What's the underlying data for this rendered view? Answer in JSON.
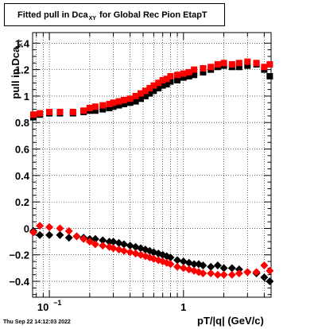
{
  "title": {
    "prefix": "Fitted pull in Dca",
    "subscript": "XY",
    "suffix": "for Global Rec Pion EtapT"
  },
  "timestamp": "Thu Sep 22 14:12:03 2022",
  "chart_data": {
    "type": "scatter",
    "xlabel": "pT/|q| (GeV/c)",
    "ylabel_main": "pull in Dca",
    "ylabel_sub": "XY",
    "xscale": "log",
    "xlim": [
      0.075,
      4.5
    ],
    "ylim": [
      -0.52,
      1.48
    ],
    "grid": true,
    "xticks": [
      {
        "value": 0.1,
        "base": "10",
        "exp": "−1"
      },
      {
        "value": 1,
        "label": "1"
      }
    ],
    "yticks": [
      {
        "value": -0.4,
        "label": "−0.4"
      },
      {
        "value": -0.2,
        "label": "−0.2"
      },
      {
        "value": 0,
        "label": "0"
      },
      {
        "value": 0.2,
        "label": "0.2"
      },
      {
        "value": 0.4,
        "label": "0.4"
      },
      {
        "value": 0.6,
        "label": "0.6"
      },
      {
        "value": 0.8,
        "label": "0.8"
      },
      {
        "value": 1,
        "label": "1"
      },
      {
        "value": 1.2,
        "label": "1.2"
      },
      {
        "value": 1.4,
        "label": "1.4"
      }
    ],
    "series": [
      {
        "color": "#000000",
        "marker": "square",
        "x": [
          0.076,
          0.085,
          0.1,
          0.12,
          0.15,
          0.18,
          0.2,
          0.22,
          0.25,
          0.28,
          0.3,
          0.33,
          0.36,
          0.4,
          0.44,
          0.48,
          0.52,
          0.56,
          0.6,
          0.65,
          0.7,
          0.75,
          0.8,
          0.9,
          1.0,
          1.1,
          1.2,
          1.4,
          1.6,
          1.8,
          2.0,
          2.3,
          2.6,
          3.0,
          3.5,
          4.0,
          4.4
        ],
        "y": [
          0.84,
          0.86,
          0.87,
          0.87,
          0.87,
          0.88,
          0.89,
          0.89,
          0.9,
          0.91,
          0.92,
          0.93,
          0.94,
          0.95,
          0.96,
          0.98,
          1.0,
          1.02,
          1.04,
          1.06,
          1.08,
          1.09,
          1.11,
          1.12,
          1.14,
          1.15,
          1.16,
          1.18,
          1.2,
          1.22,
          1.23,
          1.22,
          1.22,
          1.23,
          1.24,
          1.2,
          1.15
        ]
      },
      {
        "color": "#ff0000",
        "marker": "square",
        "x": [
          0.076,
          0.085,
          0.1,
          0.12,
          0.15,
          0.18,
          0.2,
          0.22,
          0.25,
          0.28,
          0.3,
          0.33,
          0.36,
          0.4,
          0.44,
          0.48,
          0.52,
          0.56,
          0.6,
          0.65,
          0.7,
          0.75,
          0.8,
          0.9,
          1.0,
          1.1,
          1.2,
          1.4,
          1.6,
          1.8,
          2.0,
          2.3,
          2.6,
          3.0,
          3.5,
          4.0,
          4.4
        ],
        "y": [
          0.86,
          0.87,
          0.88,
          0.88,
          0.88,
          0.89,
          0.91,
          0.92,
          0.93,
          0.94,
          0.95,
          0.96,
          0.97,
          0.98,
          1.0,
          1.02,
          1.04,
          1.06,
          1.08,
          1.1,
          1.12,
          1.13,
          1.15,
          1.16,
          1.17,
          1.18,
          1.2,
          1.21,
          1.22,
          1.24,
          1.25,
          1.24,
          1.25,
          1.26,
          1.25,
          1.22,
          1.24
        ]
      },
      {
        "color": "#000000",
        "marker": "diamond",
        "x": [
          0.076,
          0.085,
          0.1,
          0.12,
          0.14,
          0.16,
          0.18,
          0.2,
          0.22,
          0.25,
          0.28,
          0.3,
          0.33,
          0.36,
          0.4,
          0.44,
          0.48,
          0.52,
          0.56,
          0.6,
          0.65,
          0.7,
          0.75,
          0.8,
          0.9,
          1.0,
          1.1,
          1.2,
          1.3,
          1.4,
          1.6,
          1.8,
          2.0,
          2.3,
          2.6,
          3.0,
          3.5,
          4.0,
          4.4
        ],
        "y": [
          -0.02,
          -0.05,
          -0.05,
          -0.05,
          -0.07,
          -0.06,
          -0.07,
          -0.08,
          -0.08,
          -0.09,
          -0.1,
          -0.1,
          -0.11,
          -0.12,
          -0.13,
          -0.14,
          -0.15,
          -0.16,
          -0.17,
          -0.18,
          -0.19,
          -0.2,
          -0.21,
          -0.22,
          -0.24,
          -0.25,
          -0.26,
          -0.27,
          -0.27,
          -0.28,
          -0.29,
          -0.28,
          -0.3,
          -0.3,
          -0.31,
          -0.33,
          -0.34,
          -0.37,
          -0.4
        ]
      },
      {
        "color": "#ff0000",
        "marker": "diamond",
        "x": [
          0.076,
          0.085,
          0.1,
          0.12,
          0.14,
          0.16,
          0.18,
          0.2,
          0.22,
          0.25,
          0.28,
          0.3,
          0.33,
          0.36,
          0.4,
          0.44,
          0.48,
          0.52,
          0.56,
          0.6,
          0.65,
          0.7,
          0.75,
          0.8,
          0.9,
          1.0,
          1.1,
          1.2,
          1.3,
          1.4,
          1.6,
          1.8,
          2.0,
          2.3,
          2.6,
          3.0,
          3.5,
          4.0,
          4.4
        ],
        "y": [
          -0.03,
          0.02,
          0.01,
          0.0,
          -0.02,
          -0.06,
          -0.08,
          -0.1,
          -0.12,
          -0.13,
          -0.14,
          -0.15,
          -0.16,
          -0.17,
          -0.18,
          -0.19,
          -0.2,
          -0.21,
          -0.22,
          -0.23,
          -0.24,
          -0.25,
          -0.26,
          -0.27,
          -0.29,
          -0.3,
          -0.31,
          -0.32,
          -0.33,
          -0.34,
          -0.34,
          -0.35,
          -0.35,
          -0.35,
          -0.34,
          -0.33,
          -0.33,
          -0.28,
          -0.32
        ]
      }
    ]
  }
}
